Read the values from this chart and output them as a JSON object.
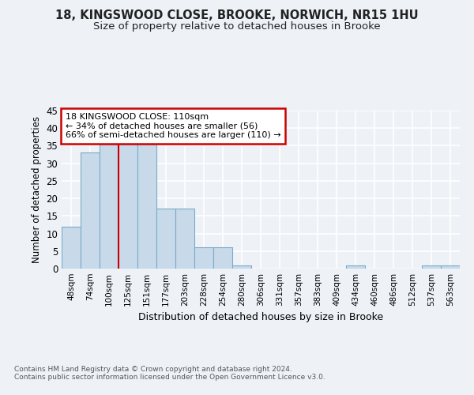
{
  "title1": "18, KINGSWOOD CLOSE, BROOKE, NORWICH, NR15 1HU",
  "title2": "Size of property relative to detached houses in Brooke",
  "xlabel": "Distribution of detached houses by size in Brooke",
  "ylabel": "Number of detached properties",
  "categories": [
    "48sqm",
    "74sqm",
    "100sqm",
    "125sqm",
    "151sqm",
    "177sqm",
    "203sqm",
    "228sqm",
    "254sqm",
    "280sqm",
    "306sqm",
    "331sqm",
    "357sqm",
    "383sqm",
    "409sqm",
    "434sqm",
    "460sqm",
    "486sqm",
    "512sqm",
    "537sqm",
    "563sqm"
  ],
  "values": [
    12,
    33,
    36,
    36,
    37,
    17,
    17,
    6,
    6,
    1,
    0,
    0,
    0,
    0,
    0,
    1,
    0,
    0,
    0,
    1,
    1
  ],
  "bar_color": "#c8daea",
  "bar_edge_color": "#7aaac8",
  "marker_index": 2.5,
  "annotation_text": "18 KINGSWOOD CLOSE: 110sqm\n← 34% of detached houses are smaller (56)\n66% of semi-detached houses are larger (110) →",
  "annotation_box_color": "#ffffff",
  "annotation_box_edge_color": "#cc0000",
  "vline_color": "#cc0000",
  "footer_text": "Contains HM Land Registry data © Crown copyright and database right 2024.\nContains public sector information licensed under the Open Government Licence v3.0.",
  "ylim": [
    0,
    45
  ],
  "yticks": [
    0,
    5,
    10,
    15,
    20,
    25,
    30,
    35,
    40,
    45
  ],
  "background_color": "#eef2f7",
  "grid_color": "#ffffff",
  "title_fontsize": 10.5,
  "subtitle_fontsize": 9.5,
  "xlabel_fontsize": 9
}
